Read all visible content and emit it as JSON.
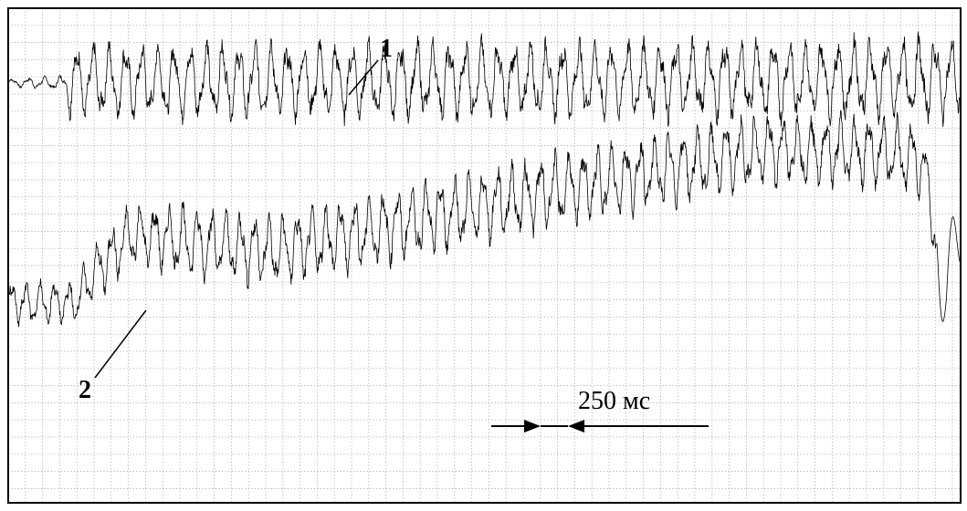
{
  "chart_data": {
    "type": "line",
    "grid": true,
    "grid_style": "dotted",
    "axis_ticks": false,
    "colors": {
      "trace": "#000000",
      "grid": "#9a9a9a",
      "frame": "#000000",
      "background": "#ffffff"
    },
    "scale_bar": {
      "label": "250 мс",
      "duration_ms": 250
    },
    "series": [
      {
        "name": "1",
        "description_points": [
          [
            0,
            0.47
          ],
          [
            60,
            0.47
          ],
          [
            60,
            0.5
          ],
          [
            1000,
            0.55
          ]
        ],
        "amplitude_points": [
          [
            0,
            0.05
          ],
          [
            60,
            0.1
          ],
          [
            65,
            0.5
          ],
          [
            1000,
            0.55
          ]
        ],
        "period_ms": 17
      },
      {
        "name": "2",
        "description_points": [
          [
            0,
            -3.55
          ],
          [
            70,
            -3.55
          ],
          [
            90,
            -3.0
          ],
          [
            130,
            -2.3
          ],
          [
            280,
            -2.6
          ],
          [
            560,
            -1.55
          ],
          [
            800,
            -0.75
          ],
          [
            920,
            -0.8
          ],
          [
            960,
            -0.95
          ],
          [
            985,
            -3.3
          ],
          [
            1000,
            -2.2
          ]
        ],
        "amplitude_points": [
          [
            0,
            0.3
          ],
          [
            75,
            0.3
          ],
          [
            100,
            0.4
          ],
          [
            200,
            0.48
          ],
          [
            500,
            0.5
          ],
          [
            960,
            0.48
          ]
        ],
        "period_ms": 15
      }
    ]
  }
}
